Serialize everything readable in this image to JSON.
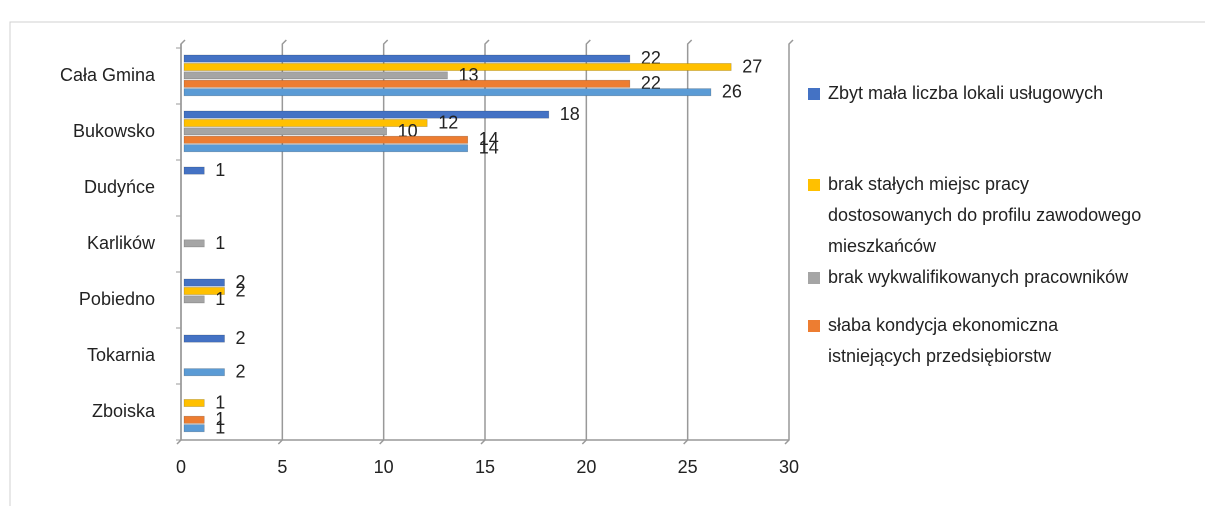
{
  "chart_data": {
    "type": "bar",
    "orientation": "horizontal",
    "categories": [
      "Cała Gmina",
      "Bukowsko",
      "Dudyńce",
      "Karlików",
      "Pobiedno",
      "Tokarnia",
      "Zboiska"
    ],
    "series": [
      {
        "name": "Zbyt mała liczba lokali usługowych",
        "color": "#4472c4",
        "values": [
          22,
          18,
          1,
          null,
          2,
          2,
          null
        ]
      },
      {
        "name": "brak stałych miejsc pracy dostosowanych do profilu zawodowego mieszkańców",
        "color": "#ffc000",
        "values": [
          27,
          12,
          null,
          null,
          2,
          null,
          1
        ]
      },
      {
        "name": "brak wykwalifikowanych pracowników",
        "color": "#a5a5a5",
        "values": [
          13,
          10,
          null,
          1,
          1,
          null,
          null
        ]
      },
      {
        "name": "słaba kondycja ekonomiczna istniejących przedsiębiorstw",
        "color": "#ed7d31",
        "values": [
          22,
          14,
          null,
          null,
          null,
          null,
          1
        ]
      },
      {
        "color": "#5b9bd5",
        "values": [
          26,
          14,
          null,
          null,
          null,
          2,
          1
        ]
      }
    ],
    "xlim": [
      0,
      30
    ],
    "xticks": [
      0,
      5,
      10,
      15,
      20,
      25,
      30
    ],
    "grid": true,
    "legend": "right"
  }
}
